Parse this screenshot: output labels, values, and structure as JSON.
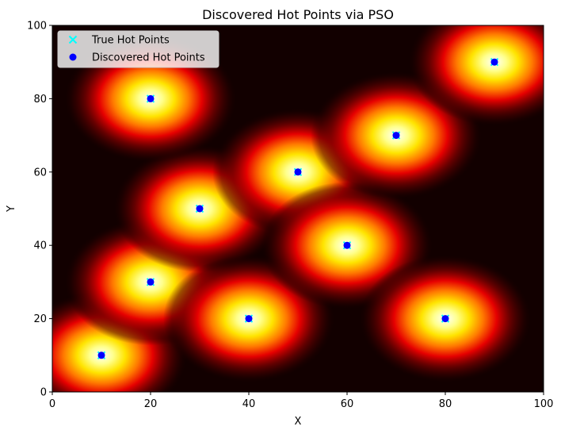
{
  "chart_data": {
    "type": "scatter",
    "title": "Discovered Hot Points via PSO",
    "xlabel": "X",
    "ylabel": "Y",
    "xlim": [
      0,
      100
    ],
    "ylim": [
      0,
      100
    ],
    "xticks": [
      0,
      20,
      40,
      60,
      80,
      100
    ],
    "yticks": [
      0,
      20,
      40,
      60,
      80,
      100
    ],
    "grid": false,
    "legend_position": "top-left",
    "background": "heatmap",
    "heatmap_colormap": "hot",
    "series": [
      {
        "name": "True Hot Points",
        "marker": "x",
        "color": "#00ffff",
        "points": [
          [
            10,
            10
          ],
          [
            20,
            30
          ],
          [
            30,
            50
          ],
          [
            40,
            20
          ],
          [
            50,
            60
          ],
          [
            60,
            40
          ],
          [
            70,
            70
          ],
          [
            80,
            20
          ],
          [
            90,
            90
          ],
          [
            20,
            80
          ]
        ]
      },
      {
        "name": "Discovered Hot Points",
        "marker": "circle",
        "color": "#0000ff",
        "points": [
          [
            10,
            10
          ],
          [
            20,
            30
          ],
          [
            30,
            50
          ],
          [
            40,
            20
          ],
          [
            50,
            60
          ],
          [
            60,
            40
          ],
          [
            70,
            70
          ],
          [
            80,
            20
          ],
          [
            90,
            90
          ],
          [
            20,
            80
          ]
        ]
      }
    ]
  }
}
